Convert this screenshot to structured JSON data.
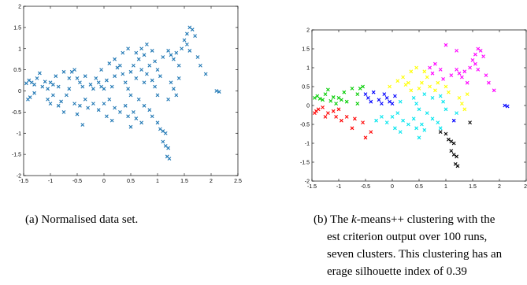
{
  "charts": [
    {
      "id": "a",
      "caption": "(a) Normalised data set.",
      "xticks": [
        "-1.5",
        "-1",
        "-0.5",
        "0",
        "0.5",
        "1",
        "1.5",
        "2",
        "2.5"
      ],
      "yticks": [
        "2",
        "1.5",
        "1",
        "0.5",
        "0",
        "-0.5",
        "-1",
        "-1.5",
        "-2"
      ]
    },
    {
      "id": "b",
      "caption_prefix": "(b) The ",
      "caption_italic": "k",
      "caption_suffix": "-means++ clustering with the",
      "caption_line2": "est criterion output over 100 runs,",
      "caption_line3": "seven clusters.  This clustering has an",
      "caption_line4": "erage silhouette index of 0.39",
      "xticks": [
        "-1.5",
        "-1",
        "-0.5",
        "0",
        "0.5",
        "1",
        "1.5",
        "2",
        "2."
      ],
      "yticks": [
        "2",
        "1.5",
        "1",
        "0.5",
        "0",
        "-0.5",
        "-1",
        "-1.5",
        "-2"
      ]
    }
  ],
  "chart_data": [
    {
      "type": "scatter",
      "title": "",
      "xlabel": "",
      "ylabel": "",
      "xlim": [
        -1.5,
        2.5
      ],
      "ylim": [
        -2,
        2
      ],
      "grid": false,
      "marker": "x",
      "series": [
        {
          "color": "#1f77b4",
          "points": [
            [
              -1.45,
              0.18
            ],
            [
              -1.4,
              0.25
            ],
            [
              -1.35,
              0.2
            ],
            [
              -1.3,
              0.15
            ],
            [
              -1.42,
              -0.2
            ],
            [
              -1.38,
              -0.15
            ],
            [
              -1.3,
              -0.05
            ],
            [
              -1.25,
              0.3
            ],
            [
              -1.2,
              0.42
            ],
            [
              -1.15,
              0.1
            ],
            [
              -1.1,
              0.22
            ],
            [
              -1.05,
              0.05
            ],
            [
              -1.0,
              0.2
            ],
            [
              -0.95,
              0.15
            ],
            [
              -0.9,
              0.35
            ],
            [
              -0.85,
              0.1
            ],
            [
              -1.05,
              -0.2
            ],
            [
              -1.0,
              -0.3
            ],
            [
              -0.95,
              -0.1
            ],
            [
              -0.85,
              -0.35
            ],
            [
              -0.8,
              -0.25
            ],
            [
              -0.75,
              -0.5
            ],
            [
              -0.7,
              -0.1
            ],
            [
              -0.65,
              0.3
            ],
            [
              -0.6,
              0.45
            ],
            [
              -0.55,
              0.5
            ],
            [
              -0.5,
              0.3
            ],
            [
              -0.45,
              0.2
            ],
            [
              -0.4,
              0.1
            ],
            [
              -0.35,
              0.35
            ],
            [
              -0.55,
              -0.3
            ],
            [
              -0.5,
              -0.55
            ],
            [
              -0.45,
              -0.35
            ],
            [
              -0.4,
              -0.8
            ],
            [
              -0.35,
              -0.2
            ],
            [
              -0.3,
              -0.4
            ],
            [
              -0.25,
              0.15
            ],
            [
              -0.2,
              0.05
            ],
            [
              -0.15,
              0.3
            ],
            [
              -0.1,
              0.2
            ],
            [
              -0.05,
              0.1
            ],
            [
              0.0,
              0.05
            ],
            [
              0.05,
              0.25
            ],
            [
              -0.2,
              -0.3
            ],
            [
              -0.1,
              -0.45
            ],
            [
              0.0,
              -0.3
            ],
            [
              0.1,
              -0.2
            ],
            [
              0.15,
              0.1
            ],
            [
              0.2,
              0.35
            ],
            [
              0.25,
              0.55
            ],
            [
              0.3,
              0.6
            ],
            [
              0.35,
              0.4
            ],
            [
              0.4,
              0.2
            ],
            [
              0.45,
              0.05
            ],
            [
              0.5,
              -0.1
            ],
            [
              0.2,
              -0.4
            ],
            [
              0.3,
              -0.5
            ],
            [
              0.4,
              -0.35
            ],
            [
              0.45,
              -0.6
            ],
            [
              0.5,
              -0.85
            ],
            [
              0.55,
              -0.5
            ],
            [
              0.5,
              0.45
            ],
            [
              0.55,
              0.6
            ],
            [
              0.6,
              0.3
            ],
            [
              0.65,
              0.75
            ],
            [
              0.7,
              0.5
            ],
            [
              0.75,
              0.2
            ],
            [
              0.8,
              0.4
            ],
            [
              0.85,
              0.6
            ],
            [
              0.6,
              0.9
            ],
            [
              0.7,
              1.0
            ],
            [
              0.75,
              0.85
            ],
            [
              0.8,
              1.1
            ],
            [
              0.9,
              0.95
            ],
            [
              0.95,
              0.7
            ],
            [
              1.0,
              0.5
            ],
            [
              1.05,
              0.35
            ],
            [
              0.9,
              0.25
            ],
            [
              0.95,
              0.1
            ],
            [
              1.0,
              -0.1
            ],
            [
              0.65,
              -0.2
            ],
            [
              0.75,
              -0.35
            ],
            [
              0.85,
              -0.45
            ],
            [
              0.9,
              -0.6
            ],
            [
              1.0,
              -0.75
            ],
            [
              1.05,
              -0.9
            ],
            [
              1.1,
              -0.95
            ],
            [
              1.15,
              -1.0
            ],
            [
              1.1,
              -1.2
            ],
            [
              1.15,
              -1.3
            ],
            [
              1.2,
              -1.35
            ],
            [
              1.18,
              -1.55
            ],
            [
              1.22,
              -1.6
            ],
            [
              1.1,
              0.8
            ],
            [
              1.2,
              0.95
            ],
            [
              1.25,
              0.85
            ],
            [
              1.3,
              0.75
            ],
            [
              1.35,
              0.9
            ],
            [
              1.4,
              0.6
            ],
            [
              1.45,
              1.0
            ],
            [
              1.5,
              1.2
            ],
            [
              1.55,
              1.35
            ],
            [
              1.6,
              1.5
            ],
            [
              1.65,
              1.45
            ],
            [
              1.7,
              1.3
            ],
            [
              1.55,
              1.1
            ],
            [
              1.6,
              0.95
            ],
            [
              1.75,
              0.8
            ],
            [
              1.8,
              0.6
            ],
            [
              1.9,
              0.4
            ],
            [
              2.1,
              0.0
            ],
            [
              2.15,
              -0.02
            ],
            [
              1.25,
              0.2
            ],
            [
              1.3,
              0.05
            ],
            [
              1.35,
              -0.1
            ],
            [
              1.2,
              -0.2
            ],
            [
              1.4,
              0.3
            ],
            [
              0.35,
              0.9
            ],
            [
              0.45,
              1.0
            ],
            [
              0.2,
              0.75
            ],
            [
              0.1,
              0.65
            ],
            [
              -0.05,
              0.5
            ],
            [
              -0.75,
              0.45
            ],
            [
              -0.65,
              0.05
            ],
            [
              0.05,
              -0.6
            ],
            [
              0.15,
              -0.7
            ],
            [
              0.6,
              -0.65
            ],
            [
              0.7,
              -0.75
            ]
          ]
        }
      ]
    },
    {
      "type": "scatter",
      "title": "",
      "xlabel": "",
      "ylabel": "",
      "xlim": [
        -1.5,
        2.5
      ],
      "ylim": [
        -2,
        2
      ],
      "grid": false,
      "marker": "x",
      "series": [
        {
          "color": "#ff0000",
          "points": [
            [
              -1.45,
              -0.2
            ],
            [
              -1.42,
              -0.15
            ],
            [
              -1.38,
              -0.1
            ],
            [
              -1.3,
              -0.05
            ],
            [
              -1.25,
              -0.3
            ],
            [
              -1.2,
              -0.2
            ],
            [
              -1.1,
              -0.15
            ],
            [
              -1.05,
              -0.3
            ],
            [
              -1.0,
              -0.1
            ],
            [
              -0.95,
              -0.4
            ],
            [
              -0.85,
              -0.3
            ],
            [
              -0.75,
              -0.6
            ],
            [
              -0.7,
              -0.35
            ],
            [
              -0.55,
              -0.45
            ],
            [
              -0.4,
              -0.7
            ],
            [
              -0.5,
              -0.85
            ]
          ]
        },
        {
          "color": "#00cc00",
          "points": [
            [
              -1.45,
              0.2
            ],
            [
              -1.4,
              0.25
            ],
            [
              -1.35,
              0.18
            ],
            [
              -1.3,
              0.15
            ],
            [
              -1.25,
              0.3
            ],
            [
              -1.2,
              0.42
            ],
            [
              -1.15,
              0.12
            ],
            [
              -1.1,
              0.22
            ],
            [
              -1.05,
              0.05
            ],
            [
              -1.0,
              0.2
            ],
            [
              -0.95,
              0.15
            ],
            [
              -0.9,
              0.35
            ],
            [
              -0.85,
              0.1
            ],
            [
              -0.75,
              0.45
            ],
            [
              -0.65,
              0.3
            ],
            [
              -0.6,
              0.45
            ],
            [
              -0.55,
              0.5
            ],
            [
              -0.65,
              0.05
            ]
          ]
        },
        {
          "color": "#00e5ee",
          "points": [
            [
              -0.3,
              -0.4
            ],
            [
              -0.2,
              -0.3
            ],
            [
              -0.1,
              -0.45
            ],
            [
              0.0,
              -0.3
            ],
            [
              0.1,
              -0.2
            ],
            [
              0.2,
              -0.4
            ],
            [
              0.3,
              -0.5
            ],
            [
              0.4,
              -0.35
            ],
            [
              0.45,
              -0.6
            ],
            [
              0.5,
              -0.85
            ],
            [
              0.55,
              -0.5
            ],
            [
              0.05,
              -0.6
            ],
            [
              0.15,
              -0.7
            ],
            [
              0.6,
              -0.65
            ],
            [
              0.65,
              -0.2
            ],
            [
              0.75,
              -0.35
            ],
            [
              0.85,
              -0.45
            ],
            [
              0.9,
              -0.6
            ],
            [
              0.45,
              0.05
            ],
            [
              0.5,
              -0.1
            ],
            [
              0.6,
              0.3
            ],
            [
              0.75,
              0.2
            ],
            [
              0.9,
              0.25
            ],
            [
              0.95,
              0.1
            ],
            [
              1.0,
              -0.1
            ],
            [
              1.2,
              -0.2
            ],
            [
              0.15,
              0.1
            ],
            [
              0.4,
              0.2
            ]
          ]
        },
        {
          "color": "#000000",
          "points": [
            [
              1.0,
              -0.75
            ],
            [
              1.05,
              -0.9
            ],
            [
              1.1,
              -0.95
            ],
            [
              1.15,
              -1.0
            ],
            [
              1.1,
              -1.2
            ],
            [
              1.15,
              -1.3
            ],
            [
              1.2,
              -1.35
            ],
            [
              1.18,
              -1.55
            ],
            [
              1.22,
              -1.6
            ],
            [
              0.9,
              -0.7
            ],
            [
              1.45,
              -0.45
            ]
          ]
        },
        {
          "color": "#ffff00",
          "points": [
            [
              -0.05,
              0.5
            ],
            [
              0.1,
              0.65
            ],
            [
              0.2,
              0.75
            ],
            [
              0.3,
              0.6
            ],
            [
              0.35,
              0.9
            ],
            [
              0.45,
              1.0
            ],
            [
              0.5,
              0.45
            ],
            [
              0.55,
              0.6
            ],
            [
              0.65,
              0.75
            ],
            [
              0.7,
              0.5
            ],
            [
              0.85,
              0.6
            ],
            [
              0.6,
              0.9
            ],
            [
              0.8,
              0.4
            ],
            [
              1.0,
              0.5
            ],
            [
              1.05,
              0.35
            ],
            [
              1.25,
              0.2
            ],
            [
              1.3,
              0.05
            ],
            [
              1.4,
              0.3
            ],
            [
              1.35,
              -0.1
            ],
            [
              0.25,
              0.55
            ],
            [
              0.35,
              0.4
            ]
          ]
        },
        {
          "color": "#ff00ff",
          "points": [
            [
              0.7,
              1.0
            ],
            [
              0.75,
              0.85
            ],
            [
              0.8,
              1.1
            ],
            [
              0.9,
              0.95
            ],
            [
              0.95,
              0.7
            ],
            [
              1.1,
              0.8
            ],
            [
              1.2,
              0.95
            ],
            [
              1.25,
              0.85
            ],
            [
              1.3,
              0.75
            ],
            [
              1.35,
              0.9
            ],
            [
              1.4,
              0.6
            ],
            [
              1.45,
              1.0
            ],
            [
              1.5,
              1.2
            ],
            [
              1.55,
              1.35
            ],
            [
              1.6,
              1.5
            ],
            [
              1.65,
              1.45
            ],
            [
              1.7,
              1.3
            ],
            [
              1.55,
              1.1
            ],
            [
              1.6,
              0.95
            ],
            [
              1.75,
              0.8
            ],
            [
              1.8,
              0.6
            ],
            [
              1.9,
              0.4
            ],
            [
              1.0,
              1.6
            ],
            [
              1.2,
              1.45
            ]
          ]
        },
        {
          "color": "#0000ff",
          "points": [
            [
              -0.25,
              0.15
            ],
            [
              -0.2,
              0.05
            ],
            [
              -0.15,
              0.3
            ],
            [
              -0.1,
              0.2
            ],
            [
              -0.05,
              0.1
            ],
            [
              0.0,
              0.05
            ],
            [
              0.05,
              0.25
            ],
            [
              -0.45,
              0.2
            ],
            [
              -0.4,
              0.1
            ],
            [
              -0.35,
              0.35
            ],
            [
              -0.5,
              0.3
            ],
            [
              1.15,
              -0.4
            ],
            [
              2.1,
              0.0
            ],
            [
              2.15,
              -0.02
            ]
          ]
        }
      ]
    }
  ]
}
